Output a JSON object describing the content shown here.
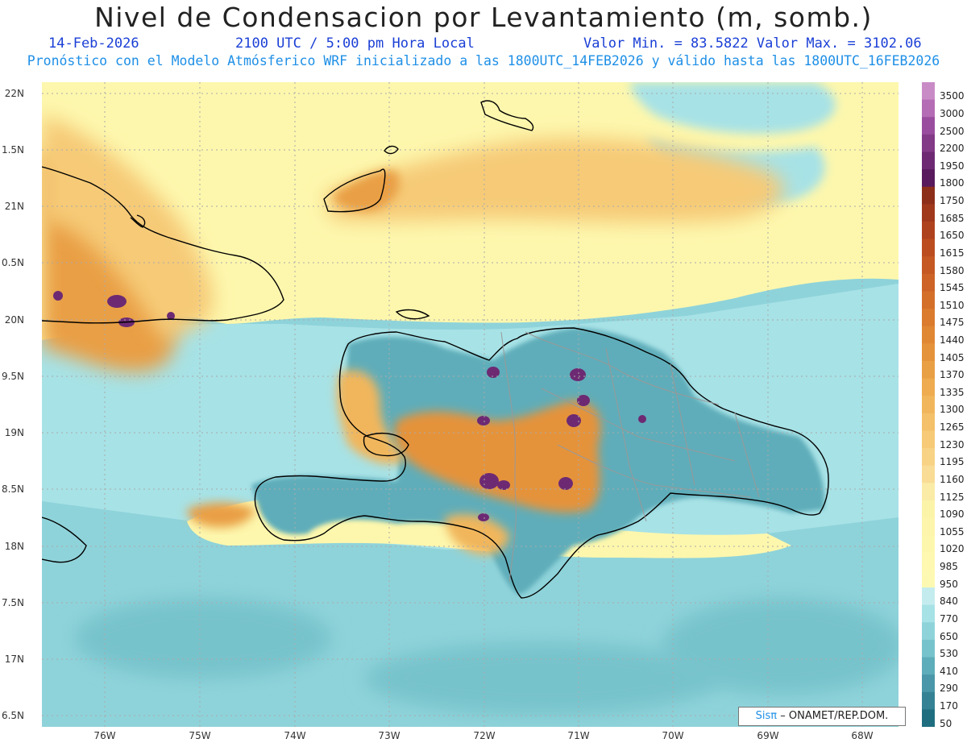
{
  "title": "Nivel de Condensacion por Levantamiento (m, somb.)",
  "date": "14-Feb-2026",
  "time": "2100 UTC / 5:00 pm Hora Local",
  "min_max": "Valor Min. = 83.5822  Valor Max. = 3102.06",
  "forecast_note": "Pronóstico con el Modelo Atmósferico WRF inicializado a las 1800UTC_14FEB2026 y válido hasta las  1800UTC_16FEB2026",
  "lat_labels": [
    "22N",
    "1.5N",
    "21N",
    "0.5N",
    "20N",
    "9.5N",
    "19N",
    "8.5N",
    "18N",
    "7.5N",
    "17N",
    "6.5N"
  ],
  "lon_labels": [
    "76W",
    "75W",
    "74W",
    "73W",
    "72W",
    "71W",
    "70W",
    "69W",
    "68W"
  ],
  "colorbar": {
    "levels": [
      "3500",
      "3000",
      "2500",
      "2200",
      "1950",
      "1800",
      "1750",
      "1685",
      "1650",
      "1615",
      "1580",
      "1545",
      "1510",
      "1475",
      "1440",
      "1405",
      "1370",
      "1335",
      "1300",
      "1265",
      "1230",
      "1195",
      "1160",
      "1125",
      "1090",
      "1055",
      "1020",
      "985",
      "950",
      "840",
      "770",
      "650",
      "530",
      "410",
      "290",
      "170",
      "50"
    ],
    "colors": [
      "#c98bc6",
      "#b46cb4",
      "#9a4d9e",
      "#833a87",
      "#6d2a73",
      "#581a5c",
      "#8c2e1a",
      "#a0381c",
      "#af421e",
      "#bb4d20",
      "#c55823",
      "#cd6326",
      "#d46f2a",
      "#da7b2e",
      "#e08733",
      "#e5933a",
      "#e99f44",
      "#eeab4f",
      "#f1b65b",
      "#f4c069",
      "#f6ca77",
      "#f8d386",
      "#f9dc95",
      "#faeca7",
      "#fbf3a8",
      "#fcf5ab",
      "#fdf7ad",
      "#fef8b0",
      "#fef9b2",
      "#c4ecee",
      "#a7e2e6",
      "#8fd3da",
      "#77c3cc",
      "#5eadba",
      "#4997a8",
      "#348294",
      "#1f6e80"
    ]
  },
  "credit": {
    "sis": "Sisπ",
    "org": "– ONAMET/REP.DOM."
  }
}
